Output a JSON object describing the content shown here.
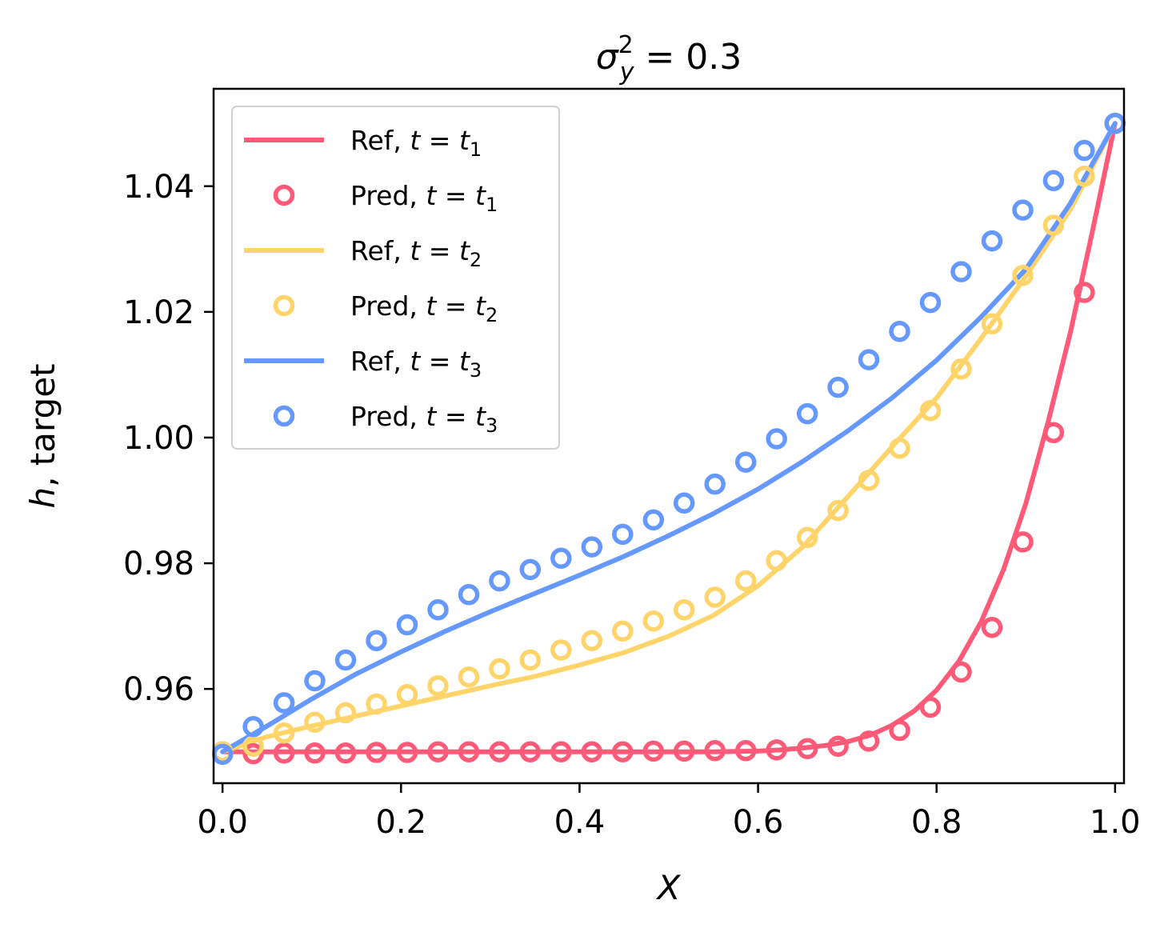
{
  "chart_data": {
    "type": "line",
    "title": "σ_y^2 = 0.3",
    "title_parts": {
      "base": "σ",
      "sup": "2",
      "sub": "y",
      "rest": " = 0.3"
    },
    "xlabel": "X",
    "ylabel": "h, target",
    "ylabel_parts": {
      "italic": "h",
      "rest": ", target"
    },
    "xlim": [
      -0.01,
      1.01
    ],
    "ylim": [
      0.945,
      1.0555
    ],
    "xticks": [
      0.0,
      0.2,
      0.4,
      0.6,
      0.8,
      1.0
    ],
    "xtick_labels": [
      "0.0",
      "0.2",
      "0.4",
      "0.6",
      "0.8",
      "1.0"
    ],
    "yticks": [
      0.96,
      0.98,
      1.0,
      1.02,
      1.04
    ],
    "ytick_labels": [
      "0.96",
      "0.98",
      "1.00",
      "1.02",
      "1.04"
    ],
    "grid": false,
    "legend_position": "top-left",
    "colors": {
      "t1": "#ff5a78",
      "t2": "#ffd56b",
      "t3": "#6699ff"
    },
    "x": [
      0.0,
      0.0345,
      0.069,
      0.1034,
      0.1379,
      0.1724,
      0.2069,
      0.2414,
      0.2759,
      0.3103,
      0.3448,
      0.3793,
      0.4138,
      0.4483,
      0.4828,
      0.5172,
      0.5517,
      0.5862,
      0.6207,
      0.6552,
      0.6897,
      0.7241,
      0.7586,
      0.7931,
      0.8276,
      0.8621,
      0.8966,
      0.931,
      0.9655,
      1.0
    ],
    "series": [
      {
        "name": "Ref, t = t1",
        "label_prefix": "Ref",
        "label_sub": "1",
        "kind": "line",
        "color_key": "t1",
        "x": [
          0.0,
          0.05,
          0.1,
          0.15,
          0.2,
          0.25,
          0.3,
          0.35,
          0.4,
          0.45,
          0.5,
          0.55,
          0.6,
          0.625,
          0.65,
          0.675,
          0.7,
          0.725,
          0.75,
          0.775,
          0.8,
          0.825,
          0.85,
          0.875,
          0.9,
          0.925,
          0.95,
          0.975,
          1.0
        ],
        "values": [
          0.95,
          0.95,
          0.95,
          0.95,
          0.95,
          0.95,
          0.95,
          0.95,
          0.95,
          0.95,
          0.95,
          0.95,
          0.9501,
          0.9503,
          0.9506,
          0.951,
          0.9516,
          0.9526,
          0.9542,
          0.9565,
          0.9598,
          0.9644,
          0.9707,
          0.979,
          0.9895,
          1.0025,
          1.0168,
          1.0331,
          1.05
        ]
      },
      {
        "name": "Pred, t = t1",
        "label_prefix": "Pred",
        "label_sub": "1",
        "kind": "markers",
        "color_key": "t1",
        "values": [
          0.95,
          0.9497,
          0.9498,
          0.9498,
          0.9498,
          0.9499,
          0.9499,
          0.95,
          0.95,
          0.95,
          0.95,
          0.95,
          0.95,
          0.95,
          0.9501,
          0.9501,
          0.9502,
          0.9502,
          0.9503,
          0.9505,
          0.9509,
          0.9517,
          0.9534,
          0.9571,
          0.9627,
          0.9698,
          0.9834,
          1.0008,
          1.0231,
          1.05
        ]
      },
      {
        "name": "Ref, t = t2",
        "label_prefix": "Ref",
        "label_sub": "2",
        "kind": "line",
        "color_key": "t2",
        "x": [
          0.0,
          0.05,
          0.1,
          0.15,
          0.2,
          0.25,
          0.3,
          0.35,
          0.4,
          0.45,
          0.5,
          0.55,
          0.6,
          0.65,
          0.7,
          0.75,
          0.8,
          0.85,
          0.9,
          0.95,
          1.0
        ],
        "values": [
          0.95,
          0.9524,
          0.9541,
          0.9557,
          0.9573,
          0.9589,
          0.9605,
          0.962,
          0.9638,
          0.9658,
          0.9684,
          0.9717,
          0.9764,
          0.9826,
          0.9905,
          0.9985,
          1.0063,
          1.0158,
          1.0257,
          1.0363,
          1.05
        ]
      },
      {
        "name": "Pred, t = t2",
        "label_prefix": "Pred",
        "label_sub": "2",
        "kind": "markers",
        "color_key": "t2",
        "values": [
          0.95,
          0.9509,
          0.953,
          0.9547,
          0.9562,
          0.9576,
          0.9591,
          0.9605,
          0.9619,
          0.9632,
          0.9646,
          0.9662,
          0.9677,
          0.9692,
          0.9708,
          0.9726,
          0.9746,
          0.9772,
          0.9804,
          0.9841,
          0.9884,
          0.9932,
          0.9983,
          1.0043,
          1.0109,
          1.0181,
          1.0258,
          1.0338,
          1.0416,
          1.05
        ]
      },
      {
        "name": "Ref, t = t3",
        "label_prefix": "Ref",
        "label_sub": "3",
        "kind": "line",
        "color_key": "t3",
        "x": [
          0.0,
          0.05,
          0.1,
          0.15,
          0.2,
          0.25,
          0.3,
          0.35,
          0.4,
          0.45,
          0.5,
          0.55,
          0.6,
          0.65,
          0.7,
          0.75,
          0.8,
          0.85,
          0.9,
          0.95,
          1.0
        ],
        "values": [
          0.95,
          0.9541,
          0.9584,
          0.9624,
          0.9659,
          0.9692,
          0.9723,
          0.9752,
          0.9781,
          0.9811,
          0.9844,
          0.9879,
          0.9918,
          0.9962,
          1.001,
          1.0063,
          1.0123,
          1.0192,
          1.0268,
          1.0373,
          1.05
        ]
      },
      {
        "name": "Pred, t = t3",
        "label_prefix": "Pred",
        "label_sub": "3",
        "kind": "markers",
        "color_key": "t3",
        "values": [
          0.9496,
          0.954,
          0.9578,
          0.9613,
          0.9646,
          0.9677,
          0.9702,
          0.9726,
          0.975,
          0.9772,
          0.979,
          0.9808,
          0.9826,
          0.9846,
          0.9869,
          0.9896,
          0.9926,
          0.9961,
          0.9998,
          1.0038,
          1.008,
          1.0124,
          1.0169,
          1.0215,
          1.0264,
          1.0313,
          1.0362,
          1.0409,
          1.0457,
          1.05
        ]
      }
    ]
  }
}
